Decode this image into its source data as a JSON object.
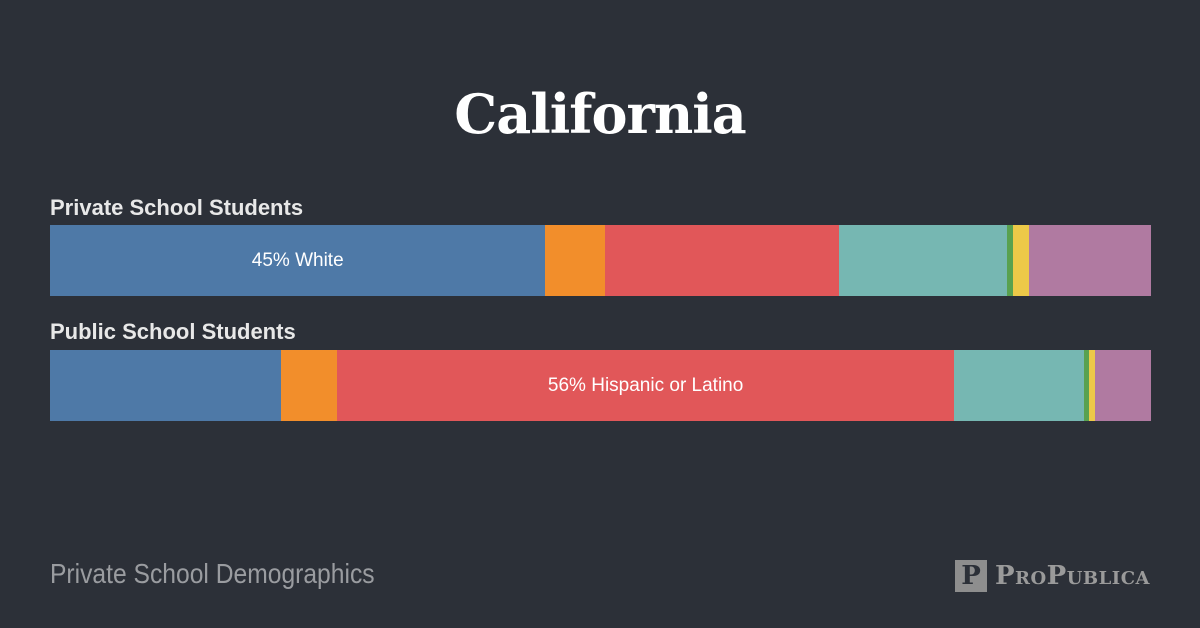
{
  "header": {
    "title": "California"
  },
  "chart_data": [
    {
      "type": "bar",
      "orientation": "horizontal-stacked-100",
      "title": "Private School Students",
      "segments": [
        {
          "value": 45,
          "color": "#4e79a7",
          "label": "45% White"
        },
        {
          "value": 5.4,
          "color": "#f28e2b",
          "label": ""
        },
        {
          "value": 21.3,
          "color": "#e15759",
          "label": ""
        },
        {
          "value": 15.2,
          "color": "#76b7b2",
          "label": ""
        },
        {
          "value": 0.6,
          "color": "#59a14f",
          "label": ""
        },
        {
          "value": 1.4,
          "color": "#edc948",
          "label": ""
        },
        {
          "value": 11.1,
          "color": "#b07aa1",
          "label": ""
        }
      ]
    },
    {
      "type": "bar",
      "orientation": "horizontal-stacked-100",
      "title": "Public School Students",
      "segments": [
        {
          "value": 21,
          "color": "#4e79a7",
          "label": ""
        },
        {
          "value": 5.1,
          "color": "#f28e2b",
          "label": ""
        },
        {
          "value": 56,
          "color": "#e15759",
          "label": "56% Hispanic or Latino"
        },
        {
          "value": 11.8,
          "color": "#76b7b2",
          "label": ""
        },
        {
          "value": 0.5,
          "color": "#59a14f",
          "label": ""
        },
        {
          "value": 0.5,
          "color": "#edc948",
          "label": ""
        },
        {
          "value": 5.1,
          "color": "#b07aa1",
          "label": ""
        }
      ]
    }
  ],
  "footer": {
    "left_text": "Private School Demographics",
    "logo_text": "ProPublica",
    "logo_mark": "P"
  }
}
